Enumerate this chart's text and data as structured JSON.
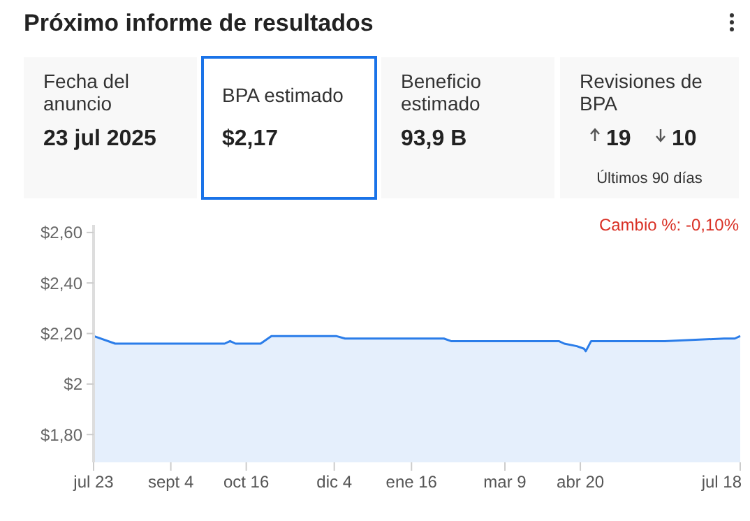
{
  "chart_data": {
    "type": "area",
    "title": "Próximo informe de resultados",
    "annotations": [
      "Fecha del anuncio",
      "23 jul 2025",
      "BPA estimado",
      "$2,17",
      "Beneficio estimado",
      "93,9 B",
      "Revisiones de BPA",
      "19",
      "10",
      "Últimos 90 días",
      "Cambio %: -0,10%"
    ],
    "series": [
      {
        "color": "#2b7de9",
        "x": [
          "2024-07-23",
          "2024-08-04",
          "2024-10-04",
          "2024-10-07",
          "2024-10-10",
          "2024-10-24",
          "2024-10-30",
          "2024-12-05",
          "2024-12-10",
          "2025-01-05",
          "2025-01-23",
          "2025-02-03",
          "2025-02-07",
          "2025-03-29",
          "2025-04-08",
          "2025-04-11",
          "2025-04-18",
          "2025-04-22",
          "2025-04-23",
          "2025-04-26",
          "2025-04-28",
          "2025-06-02",
          "2025-06-06",
          "2025-07-09",
          "2025-07-15",
          "2025-07-18"
        ],
        "values": [
          2.19,
          2.16,
          2.16,
          2.17,
          2.16,
          2.16,
          2.19,
          2.19,
          2.18,
          2.18,
          2.18,
          2.18,
          2.17,
          2.17,
          2.17,
          2.16,
          2.15,
          2.14,
          2.13,
          2.17,
          2.17,
          2.17,
          2.17,
          2.18,
          2.18,
          2.19
        ]
      }
    ],
    "xlim": [
      "2024-07-23",
      "2025-07-18"
    ],
    "xticks": [
      {
        "value": "2024-07-23",
        "label": "jul 23"
      },
      {
        "value": "2024-09-04",
        "label": "sept 4"
      },
      {
        "value": "2024-10-16",
        "label": "oct 16"
      },
      {
        "value": "2024-12-04",
        "label": "dic 4"
      },
      {
        "value": "2025-01-16",
        "label": "ene 16"
      },
      {
        "value": "2025-03-09",
        "label": "mar 9"
      },
      {
        "value": "2025-04-20",
        "label": "abr 20"
      },
      {
        "value": "2025-07-18",
        "label": "jul 18"
      }
    ],
    "ylim": [
      1.69,
      2.63
    ],
    "yticks": [
      {
        "value": 1.8,
        "label": "$1,80"
      },
      {
        "value": 2,
        "label": "$2"
      },
      {
        "value": 2.2,
        "label": "$2,20"
      },
      {
        "value": 2.4,
        "label": "$2,40"
      },
      {
        "value": 2.6,
        "label": "$2,60"
      }
    ]
  }
}
